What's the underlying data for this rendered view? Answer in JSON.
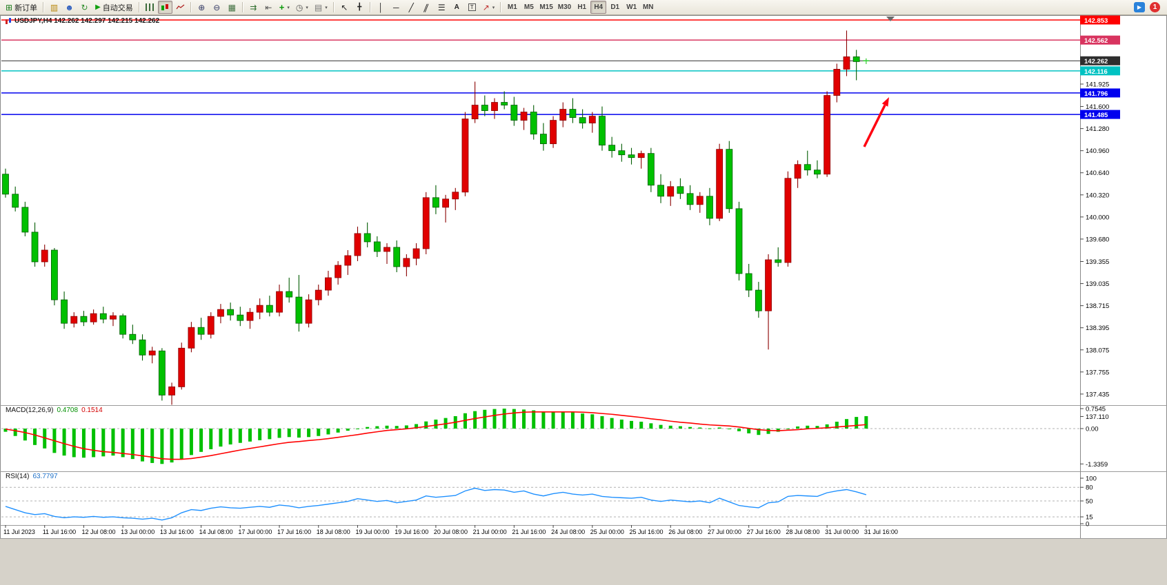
{
  "app_toolbar": {
    "new_order": "新订单",
    "autotrading": "自动交易",
    "timeframes": [
      "M1",
      "M5",
      "M15",
      "M30",
      "H1",
      "H4",
      "D1",
      "W1",
      "MN"
    ],
    "active_timeframe": "H4",
    "notification_badge": "1"
  },
  "chart_window": {
    "title": "USDJPY,H4 142.262 142.297 142.215 142.262",
    "symbol_period": "USDJPY,H4",
    "ohlc": {
      "open": "142.262",
      "high": "142.297",
      "low": "142.215",
      "close": "142.262"
    }
  },
  "price_axis": {
    "ticks": [
      "141.925",
      "141.600",
      "141.280",
      "140.960",
      "140.640",
      "140.320",
      "140.000",
      "139.680",
      "139.355",
      "139.035",
      "138.715",
      "138.395",
      "138.075",
      "137.755",
      "137.435",
      "137.110"
    ]
  },
  "price_lines": [
    {
      "price": "142.853",
      "value": 142.853,
      "color": "#ff0000",
      "name": "resistance-line-upper"
    },
    {
      "price": "142.562",
      "value": 142.562,
      "color": "#d8345f",
      "name": "resistance-line-lower"
    },
    {
      "price": "142.262",
      "value": 142.262,
      "color": "#2e2e2e",
      "name": "current-price-line"
    },
    {
      "price": "142.116",
      "value": 142.116,
      "color": "#00c2c2",
      "name": "support-line-cyan"
    },
    {
      "price": "141.796",
      "value": 141.796,
      "color": "#0000ee",
      "name": "support-line-blue-upper"
    },
    {
      "price": "141.485",
      "value": 141.485,
      "color": "#0000ee",
      "name": "support-line-blue-lower"
    }
  ],
  "time_axis": {
    "step": 4,
    "labels": [
      "11 Jul 2023",
      "11 Jul 16:00",
      "12 Jul 08:00",
      "13 Jul 00:00",
      "13 Jul 16:00",
      "14 Jul 08:00",
      "17 Jul 00:00",
      "17 Jul 16:00",
      "18 Jul 08:00",
      "19 Jul 00:00",
      "19 Jul 16:00",
      "20 Jul 08:00",
      "21 Jul 00:00",
      "21 Jul 16:00",
      "24 Jul 08:00",
      "25 Jul 00:00",
      "25 Jul 16:00",
      "26 Jul 08:00",
      "27 Jul 00:00",
      "27 Jul 16:00",
      "28 Jul 08:00",
      "31 Jul 00:00",
      "31 Jul 16:00"
    ]
  },
  "chart_data": {
    "type": "candlestick",
    "symbol": "USDJPY",
    "timeframe": "H4",
    "up_color": "#e00000",
    "down_color": "#00c000",
    "doji_color": "#32cd32",
    "candles": [
      [
        140.62,
        140.7,
        140.28,
        140.33
      ],
      [
        140.33,
        140.44,
        140.08,
        140.14
      ],
      [
        140.14,
        140.22,
        139.72,
        139.78
      ],
      [
        139.78,
        139.92,
        139.28,
        139.35
      ],
      [
        139.35,
        139.6,
        139.28,
        139.52
      ],
      [
        139.52,
        139.55,
        138.72,
        138.8
      ],
      [
        138.8,
        138.92,
        138.38,
        138.46
      ],
      [
        138.46,
        138.62,
        138.4,
        138.56
      ],
      [
        138.56,
        138.64,
        138.42,
        138.48
      ],
      [
        138.48,
        138.66,
        138.44,
        138.6
      ],
      [
        138.6,
        138.7,
        138.46,
        138.52
      ],
      [
        138.52,
        138.62,
        138.42,
        138.57
      ],
      [
        138.57,
        138.6,
        138.24,
        138.3
      ],
      [
        138.3,
        138.44,
        138.16,
        138.22
      ],
      [
        138.22,
        138.3,
        137.92,
        138.0
      ],
      [
        138.0,
        138.12,
        137.88,
        138.06
      ],
      [
        138.06,
        138.1,
        137.34,
        137.42
      ],
      [
        137.42,
        137.6,
        137.28,
        137.54
      ],
      [
        137.54,
        138.18,
        137.5,
        138.1
      ],
      [
        138.1,
        138.48,
        138.04,
        138.4
      ],
      [
        138.4,
        138.54,
        138.22,
        138.3
      ],
      [
        138.3,
        138.62,
        138.24,
        138.56
      ],
      [
        138.56,
        138.74,
        138.46,
        138.66
      ],
      [
        138.66,
        138.76,
        138.5,
        138.58
      ],
      [
        138.58,
        138.7,
        138.42,
        138.5
      ],
      [
        138.5,
        138.68,
        138.38,
        138.62
      ],
      [
        138.62,
        138.82,
        138.52,
        138.72
      ],
      [
        138.72,
        138.86,
        138.56,
        138.62
      ],
      [
        138.62,
        139.02,
        138.56,
        138.92
      ],
      [
        138.92,
        139.12,
        138.76,
        138.84
      ],
      [
        138.84,
        139.16,
        138.34,
        138.46
      ],
      [
        138.46,
        138.88,
        138.4,
        138.8
      ],
      [
        138.8,
        139.02,
        138.72,
        138.94
      ],
      [
        138.94,
        139.22,
        138.86,
        139.12
      ],
      [
        139.12,
        139.36,
        139.02,
        139.3
      ],
      [
        139.3,
        139.52,
        139.16,
        139.44
      ],
      [
        139.44,
        139.86,
        139.36,
        139.76
      ],
      [
        139.76,
        139.92,
        139.56,
        139.64
      ],
      [
        139.64,
        139.72,
        139.42,
        139.5
      ],
      [
        139.5,
        139.62,
        139.32,
        139.56
      ],
      [
        139.56,
        139.66,
        139.2,
        139.28
      ],
      [
        139.28,
        139.46,
        139.14,
        139.4
      ],
      [
        139.4,
        139.62,
        139.3,
        139.54
      ],
      [
        139.54,
        140.36,
        139.46,
        140.28
      ],
      [
        140.28,
        140.46,
        140.04,
        140.14
      ],
      [
        140.14,
        140.32,
        139.92,
        140.26
      ],
      [
        140.26,
        140.42,
        140.1,
        140.36
      ],
      [
        140.36,
        141.52,
        140.3,
        141.42
      ],
      [
        141.42,
        141.96,
        141.36,
        141.62
      ],
      [
        141.62,
        141.76,
        141.46,
        141.54
      ],
      [
        141.54,
        141.72,
        141.42,
        141.66
      ],
      [
        141.66,
        141.82,
        141.56,
        141.62
      ],
      [
        141.62,
        141.74,
        141.32,
        141.4
      ],
      [
        141.4,
        141.58,
        141.26,
        141.52
      ],
      [
        141.52,
        141.62,
        141.12,
        141.2
      ],
      [
        141.2,
        141.36,
        140.96,
        141.06
      ],
      [
        141.06,
        141.46,
        141.0,
        141.4
      ],
      [
        141.4,
        141.66,
        141.3,
        141.56
      ],
      [
        141.56,
        141.72,
        141.36,
        141.44
      ],
      [
        141.44,
        141.56,
        141.28,
        141.36
      ],
      [
        141.36,
        141.52,
        141.22,
        141.46
      ],
      [
        141.46,
        141.6,
        140.96,
        141.04
      ],
      [
        141.04,
        141.16,
        140.86,
        140.96
      ],
      [
        140.96,
        141.06,
        140.8,
        140.9
      ],
      [
        140.9,
        141.0,
        140.76,
        140.86
      ],
      [
        140.86,
        140.96,
        140.7,
        140.92
      ],
      [
        140.92,
        141.0,
        140.36,
        140.46
      ],
      [
        140.46,
        140.62,
        140.2,
        140.3
      ],
      [
        140.3,
        140.52,
        140.16,
        140.44
      ],
      [
        140.44,
        140.56,
        140.26,
        140.34
      ],
      [
        140.34,
        140.46,
        140.1,
        140.18
      ],
      [
        140.18,
        140.36,
        140.06,
        140.3
      ],
      [
        140.3,
        140.42,
        139.88,
        139.98
      ],
      [
        139.98,
        141.06,
        139.94,
        140.98
      ],
      [
        140.98,
        141.1,
        140.06,
        140.12
      ],
      [
        140.12,
        140.22,
        139.08,
        139.18
      ],
      [
        139.18,
        139.32,
        138.84,
        138.94
      ],
      [
        138.94,
        139.06,
        138.54,
        138.64
      ],
      [
        138.64,
        139.46,
        138.08,
        139.38
      ],
      [
        139.38,
        139.56,
        139.28,
        139.34
      ],
      [
        139.34,
        140.66,
        139.28,
        140.56
      ],
      [
        140.56,
        140.82,
        140.42,
        140.76
      ],
      [
        140.76,
        140.96,
        140.6,
        140.68
      ],
      [
        140.68,
        140.82,
        140.56,
        140.62
      ],
      [
        140.62,
        141.82,
        140.58,
        141.76
      ],
      [
        141.76,
        142.22,
        141.66,
        142.14
      ],
      [
        142.14,
        142.7,
        142.04,
        142.32
      ],
      [
        142.32,
        142.42,
        141.98,
        142.25
      ],
      [
        142.262,
        142.297,
        142.215,
        142.262
      ]
    ],
    "indicators": [
      {
        "type": "macd",
        "label": "MACD(12,26,9)",
        "values_text": [
          "0.4708",
          "0.1514"
        ],
        "axis_labels": [
          "0.7545",
          "0.00",
          "-1.3359"
        ],
        "histogram_color": "#00c000",
        "signal_color": "#ff0000",
        "range": [
          -1.3359,
          0.7545
        ],
        "histogram": [
          -0.12,
          -0.28,
          -0.45,
          -0.62,
          -0.75,
          -0.92,
          -1.02,
          -1.08,
          -1.1,
          -1.08,
          -1.05,
          -1.02,
          -1.08,
          -1.15,
          -1.24,
          -1.3,
          -1.3359,
          -1.28,
          -1.15,
          -1.0,
          -0.88,
          -0.78,
          -0.68,
          -0.6,
          -0.54,
          -0.49,
          -0.44,
          -0.4,
          -0.35,
          -0.32,
          -0.34,
          -0.32,
          -0.28,
          -0.22,
          -0.15,
          -0.08,
          0.0,
          0.06,
          0.09,
          0.11,
          0.1,
          0.12,
          0.17,
          0.27,
          0.34,
          0.4,
          0.47,
          0.58,
          0.66,
          0.71,
          0.74,
          0.7545,
          0.74,
          0.72,
          0.69,
          0.64,
          0.62,
          0.63,
          0.61,
          0.57,
          0.54,
          0.47,
          0.4,
          0.34,
          0.29,
          0.26,
          0.2,
          0.14,
          0.11,
          0.09,
          0.06,
          0.04,
          0.01,
          0.04,
          -0.01,
          -0.1,
          -0.18,
          -0.24,
          -0.2,
          -0.12,
          0.0,
          0.08,
          0.11,
          0.1,
          0.16,
          0.26,
          0.36,
          0.44,
          0.4708
        ],
        "signal": [
          -0.02,
          -0.08,
          -0.15,
          -0.24,
          -0.35,
          -0.46,
          -0.57,
          -0.67,
          -0.76,
          -0.82,
          -0.87,
          -0.9,
          -0.94,
          -0.98,
          -1.03,
          -1.08,
          -1.14,
          -1.16,
          -1.16,
          -1.13,
          -1.08,
          -1.02,
          -0.95,
          -0.88,
          -0.81,
          -0.75,
          -0.69,
          -0.63,
          -0.57,
          -0.52,
          -0.49,
          -0.45,
          -0.42,
          -0.38,
          -0.33,
          -0.28,
          -0.23,
          -0.17,
          -0.12,
          -0.07,
          -0.04,
          -0.01,
          0.03,
          0.08,
          0.13,
          0.18,
          0.24,
          0.31,
          0.38,
          0.44,
          0.5,
          0.55,
          0.59,
          0.62,
          0.63,
          0.63,
          0.63,
          0.63,
          0.63,
          0.62,
          0.6,
          0.57,
          0.54,
          0.5,
          0.46,
          0.42,
          0.37,
          0.33,
          0.28,
          0.24,
          0.21,
          0.17,
          0.14,
          0.12,
          0.1,
          0.06,
          0.01,
          -0.04,
          -0.07,
          -0.08,
          -0.06,
          -0.04,
          -0.01,
          0.01,
          0.03,
          0.06,
          0.09,
          0.12,
          0.15
        ]
      },
      {
        "type": "rsi",
        "label": "RSI(14)",
        "value_text": "63.7797",
        "axis_labels": [
          "100",
          "80",
          "50",
          "15",
          "0"
        ],
        "levels": [
          80,
          50,
          15
        ],
        "color": "#1e90ff",
        "range": [
          0,
          100
        ],
        "values": [
          38,
          31,
          24,
          20,
          22,
          16,
          13,
          15,
          14,
          16,
          14,
          15,
          13,
          12,
          10,
          12,
          8,
          13,
          24,
          31,
          29,
          34,
          37,
          35,
          34,
          36,
          38,
          36,
          41,
          39,
          35,
          38,
          40,
          43,
          46,
          49,
          55,
          52,
          49,
          51,
          46,
          49,
          52,
          61,
          58,
          60,
          62,
          72,
          78,
          73,
          75,
          74,
          69,
          72,
          65,
          61,
          66,
          69,
          65,
          63,
          65,
          60,
          58,
          57,
          56,
          58,
          52,
          49,
          52,
          50,
          48,
          50,
          46,
          56,
          48,
          40,
          37,
          35,
          46,
          48,
          60,
          62,
          61,
          60,
          68,
          72,
          75,
          70,
          63.78
        ]
      }
    ]
  },
  "annotations": [
    {
      "type": "arrow",
      "name": "up-trend-arrow",
      "color": "#ff0010"
    }
  ]
}
